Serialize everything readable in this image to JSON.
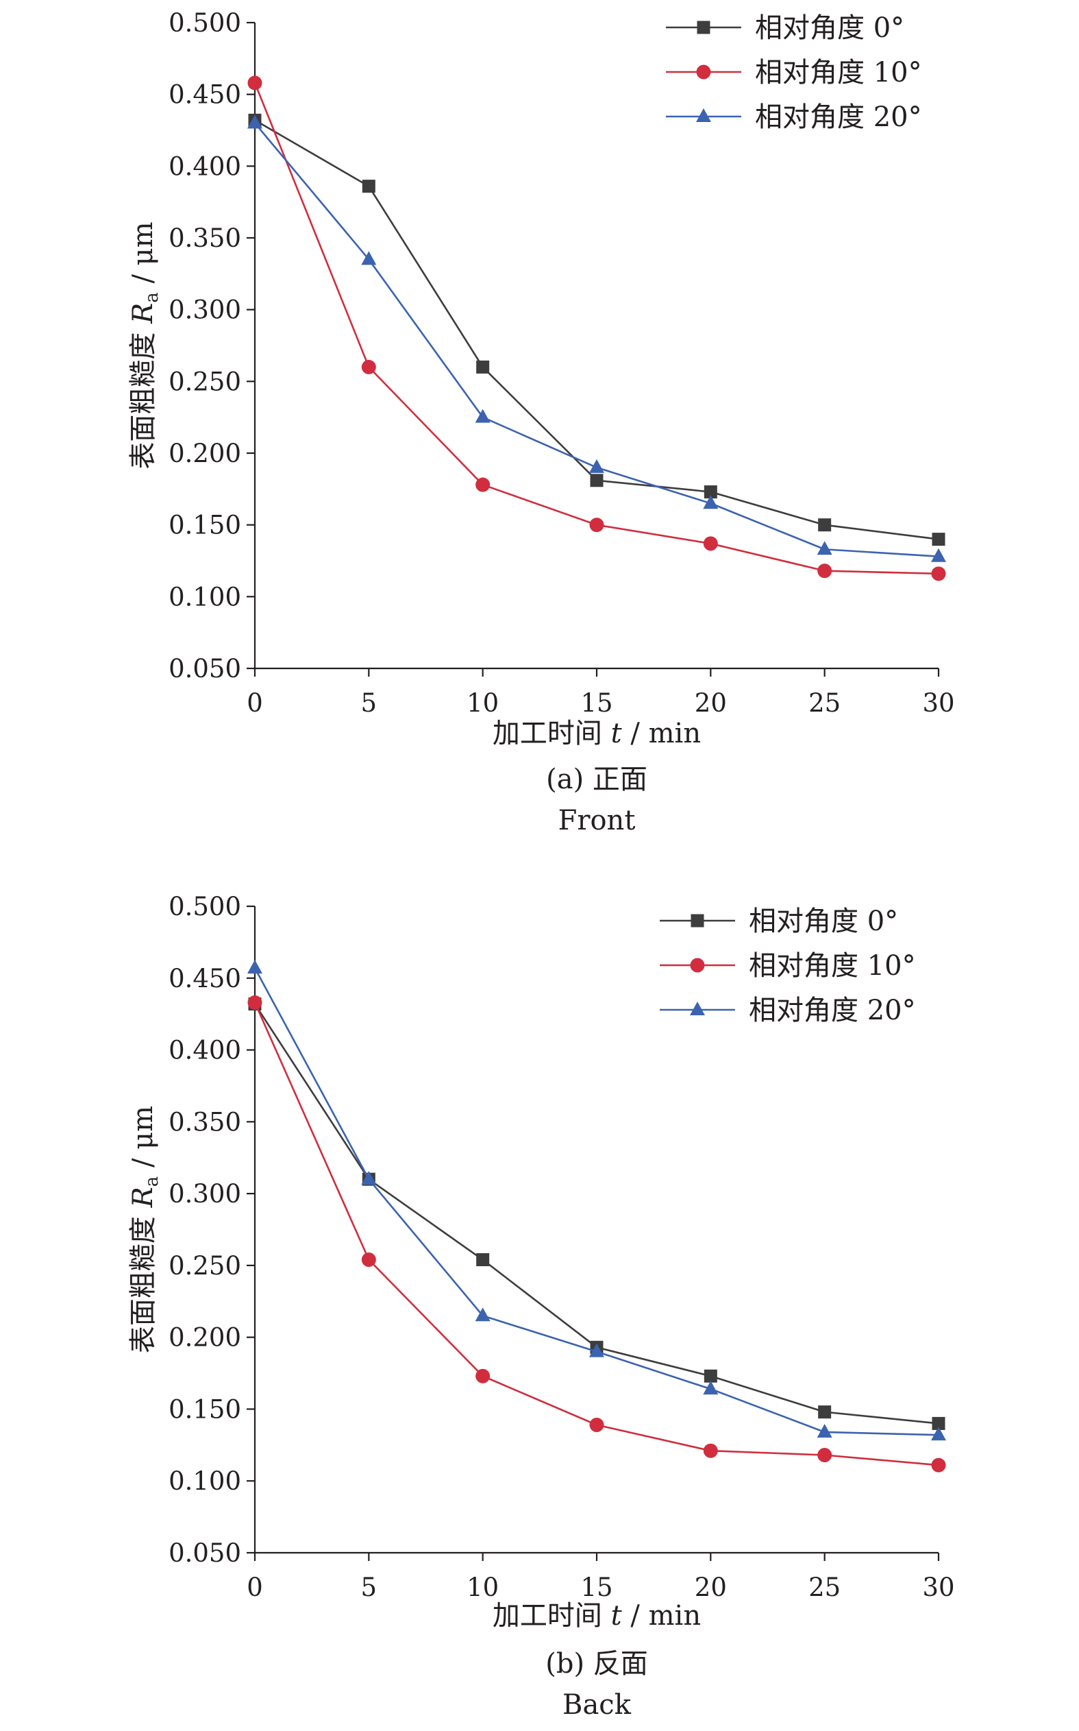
{
  "chart_data": [
    {
      "type": "line",
      "panel": "(a) 正面",
      "caption": "(a) 正面",
      "caption_en": "Front",
      "xlabel_prefix": "加工时间 ",
      "xlabel_var": "t",
      "xlabel_unit": " / min",
      "ylabel_prefix": "表面粗糙度 ",
      "ylabel_var": "R",
      "ylabel_sub": "a",
      "ylabel_unit": " / μm",
      "xlim": [
        0,
        30
      ],
      "ylim": [
        0.05,
        0.5
      ],
      "xticks": [
        0,
        5,
        10,
        15,
        20,
        25,
        30
      ],
      "yticks": [
        "0.050",
        "0.100",
        "0.150",
        "0.200",
        "0.250",
        "0.300",
        "0.350",
        "0.400",
        "0.450",
        "0.500"
      ],
      "legend_position": "top-right",
      "grid": false,
      "x": [
        0,
        5,
        10,
        15,
        20,
        25,
        30
      ],
      "series": [
        {
          "name": "相对角度 0°",
          "marker": "square",
          "color": "#3d3d3d",
          "values": [
            0.432,
            0.386,
            0.26,
            0.181,
            0.173,
            0.15,
            0.14
          ]
        },
        {
          "name": "相对角度 10°",
          "marker": "circle",
          "color": "#d12d3e",
          "values": [
            0.458,
            0.26,
            0.178,
            0.15,
            0.137,
            0.118,
            0.116
          ]
        },
        {
          "name": "相对角度 20°",
          "marker": "triangle",
          "color": "#3b63b0",
          "values": [
            0.43,
            0.335,
            0.225,
            0.19,
            0.165,
            0.133,
            0.128
          ]
        }
      ]
    },
    {
      "type": "line",
      "panel": "(b) 反面",
      "caption": "(b) 反面",
      "caption_en": "Back",
      "xlabel_prefix": "加工时间 ",
      "xlabel_var": "t",
      "xlabel_unit": " / min",
      "ylabel_prefix": "表面粗糙度 ",
      "ylabel_var": "R",
      "ylabel_sub": "a",
      "ylabel_unit": " / μm",
      "xlim": [
        0,
        30
      ],
      "ylim": [
        0.05,
        0.5
      ],
      "xticks": [
        0,
        5,
        10,
        15,
        20,
        25,
        30
      ],
      "yticks": [
        "0.050",
        "0.100",
        "0.150",
        "0.200",
        "0.250",
        "0.300",
        "0.350",
        "0.400",
        "0.450",
        "0.500"
      ],
      "legend_position": "top-right",
      "grid": false,
      "x": [
        0,
        5,
        10,
        15,
        20,
        25,
        30
      ],
      "series": [
        {
          "name": "相对角度 0°",
          "marker": "square",
          "color": "#3d3d3d",
          "values": [
            0.432,
            0.31,
            0.254,
            0.193,
            0.173,
            0.148,
            0.14
          ]
        },
        {
          "name": "相对角度 10°",
          "marker": "circle",
          "color": "#d12d3e",
          "values": [
            0.433,
            0.254,
            0.173,
            0.139,
            0.121,
            0.118,
            0.111
          ]
        },
        {
          "name": "相对角度 20°",
          "marker": "triangle",
          "color": "#3b63b0",
          "values": [
            0.457,
            0.31,
            0.215,
            0.19,
            0.164,
            0.134,
            0.132
          ]
        }
      ]
    }
  ]
}
